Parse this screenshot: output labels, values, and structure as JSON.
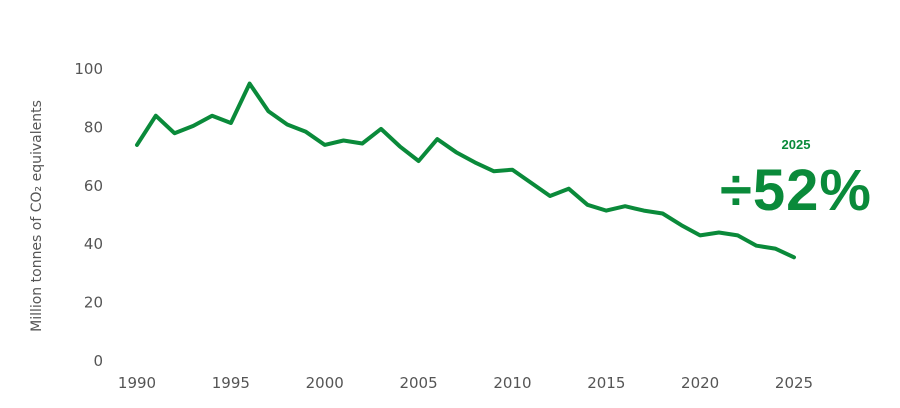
{
  "chart_data": {
    "type": "line",
    "ylabel": "Million tonnes of CO₂ equivalents",
    "xlabel": "",
    "xlim": [
      1990,
      2025
    ],
    "ylim": [
      0,
      100
    ],
    "x_ticks": [
      1990,
      1995,
      2000,
      2005,
      2010,
      2015,
      2020,
      2025
    ],
    "y_ticks": [
      0,
      20,
      40,
      60,
      80,
      100
    ],
    "grid": false,
    "line_color": "#0a8a3a",
    "x": [
      1990,
      1991,
      1992,
      1993,
      1994,
      1995,
      1996,
      1997,
      1998,
      1999,
      2000,
      2001,
      2002,
      2003,
      2004,
      2005,
      2006,
      2007,
      2008,
      2009,
      2010,
      2011,
      2012,
      2013,
      2014,
      2015,
      2016,
      2017,
      2018,
      2019,
      2020,
      2021,
      2022,
      2023,
      2024,
      2025
    ],
    "series": [
      {
        "values": [
          74,
          84,
          78,
          80.5,
          84,
          81.5,
          95,
          85.5,
          81,
          78.5,
          74,
          75.5,
          74.5,
          79.5,
          73.5,
          68.5,
          76,
          71.5,
          68,
          65,
          65.5,
          61,
          56.5,
          59,
          53.5,
          51.5,
          53,
          51.5,
          50.5,
          46.5,
          43,
          44,
          43,
          39.5,
          38.5,
          35.5
        ]
      }
    ],
    "annotation": {
      "year": "2025",
      "value": "÷52%"
    }
  }
}
